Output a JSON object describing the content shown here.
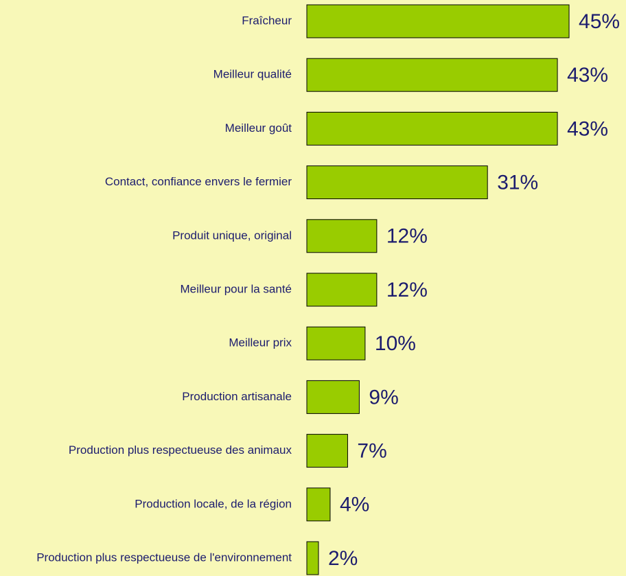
{
  "chart_data": {
    "type": "bar",
    "orientation": "horizontal",
    "categories": [
      "Fraîcheur",
      "Meilleur qualité",
      "Meilleur goût",
      "Contact, confiance envers le fermier",
      "Produit unique, original",
      "Meilleur pour la santé",
      "Meilleur prix",
      "Production artisanale",
      "Production plus respectueuse des animaux",
      "Production locale, de la région",
      "Production plus respectueuse de l'environnement"
    ],
    "values": [
      45,
      43,
      43,
      31,
      12,
      12,
      10,
      9,
      7,
      4,
      2
    ],
    "value_labels": [
      "45%",
      "43%",
      "43%",
      "31%",
      "12%",
      "12%",
      "10%",
      "9%",
      "7%",
      "4%",
      "2%"
    ],
    "color": "#99cc00"
  }
}
